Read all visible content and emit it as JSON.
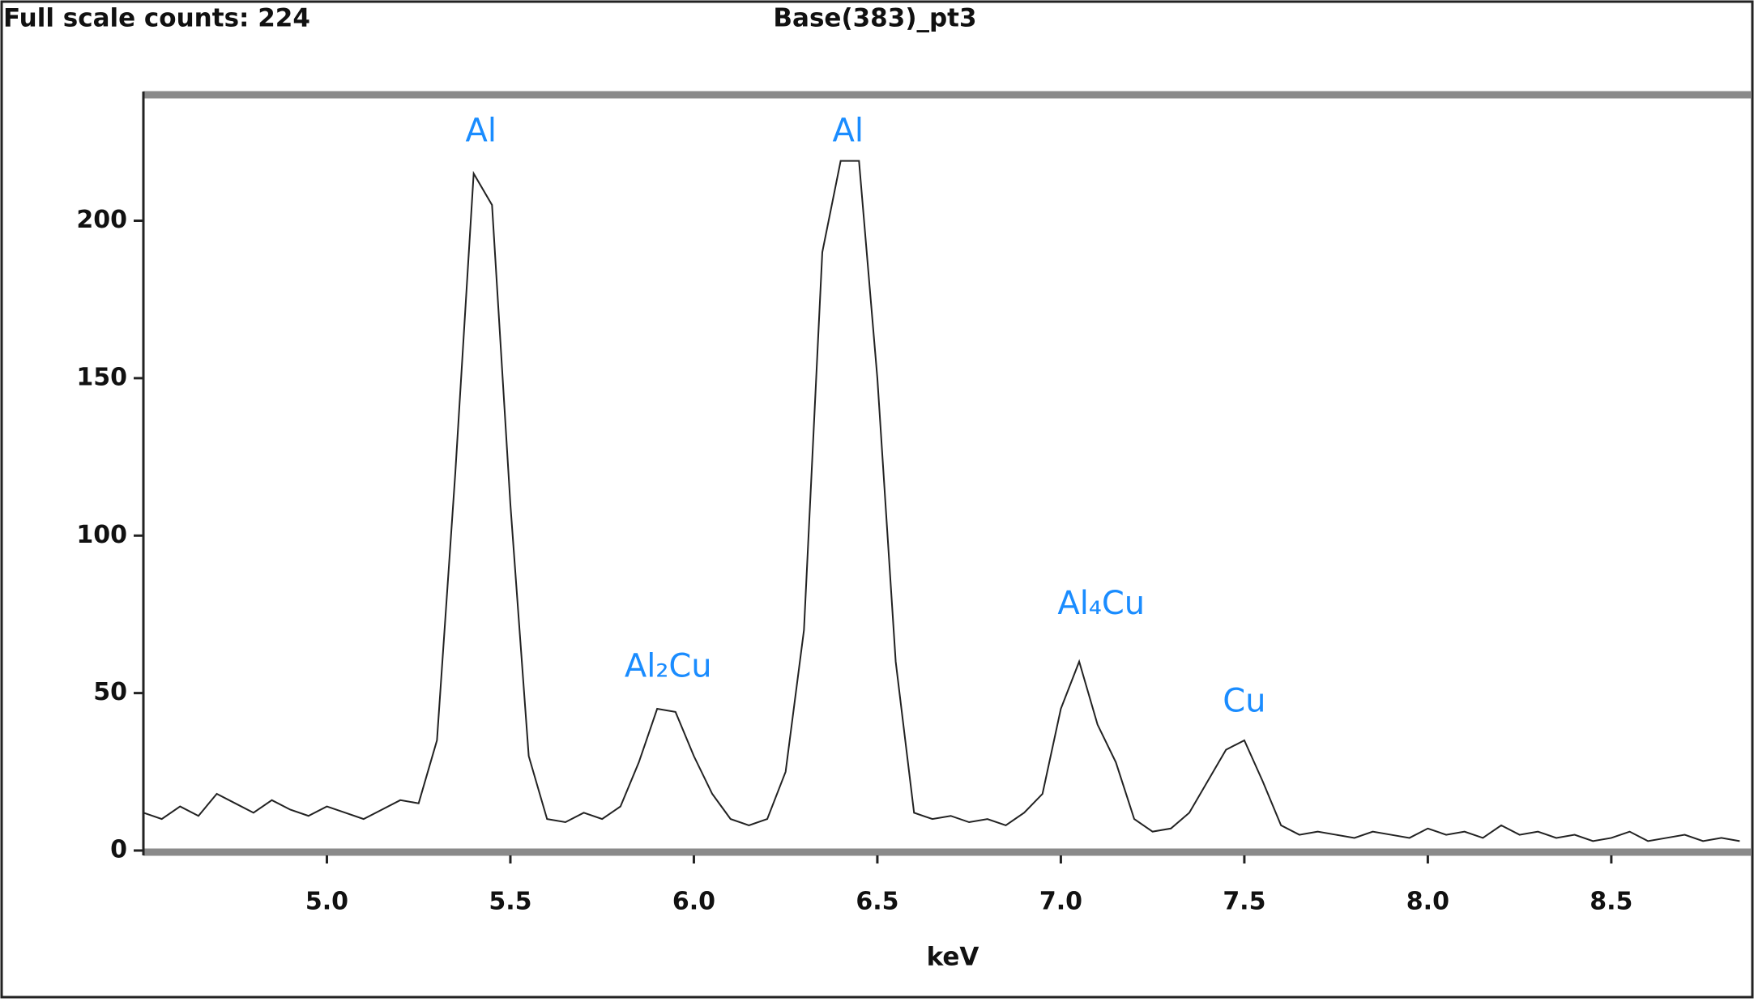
{
  "chart_data": {
    "type": "line",
    "subtitle": "Full scale counts: 224",
    "title": "Base(383)_pt3",
    "x_label": "keV",
    "xlim": [
      4.5,
      8.88
    ],
    "ylim": [
      0,
      240
    ],
    "xticks": [
      {
        "value": 5,
        "label": "5.0"
      },
      5.5,
      {
        "value": 6,
        "label": "6.0"
      },
      6.5,
      {
        "value": 7,
        "label": "7.0"
      },
      7.5,
      {
        "value": 8,
        "label": "8.0"
      },
      8.5
    ],
    "yticks": [
      0,
      50,
      100,
      150,
      200
    ],
    "color": "#222222",
    "annotation_color": "#1a8cff",
    "x": [
      4.5,
      4.55,
      4.6,
      4.65,
      4.7,
      4.75,
      4.8,
      4.85,
      4.9,
      4.95,
      5.0,
      5.05,
      5.1,
      5.15,
      5.2,
      5.25,
      5.3,
      5.35,
      5.4,
      5.45,
      5.5,
      5.55,
      5.6,
      5.65,
      5.7,
      5.75,
      5.8,
      5.85,
      5.9,
      5.95,
      6.0,
      6.05,
      6.1,
      6.15,
      6.2,
      6.25,
      6.3,
      6.35,
      6.4,
      6.45,
      6.5,
      6.55,
      6.6,
      6.65,
      6.7,
      6.75,
      6.8,
      6.85,
      6.9,
      6.95,
      7.0,
      7.05,
      7.1,
      7.15,
      7.2,
      7.25,
      7.3,
      7.35,
      7.4,
      7.45,
      7.5,
      7.55,
      7.6,
      7.65,
      7.7,
      7.75,
      7.8,
      7.85,
      7.9,
      7.95,
      8.0,
      8.05,
      8.1,
      8.15,
      8.2,
      8.25,
      8.3,
      8.35,
      8.4,
      8.45,
      8.5,
      8.55,
      8.6,
      8.65,
      8.7,
      8.75,
      8.8,
      8.85
    ],
    "values": [
      12,
      10,
      14,
      11,
      18,
      15,
      12,
      16,
      13,
      11,
      14,
      12,
      10,
      13,
      16,
      15,
      35,
      120,
      215,
      205,
      110,
      30,
      10,
      9,
      12,
      10,
      14,
      28,
      45,
      44,
      30,
      18,
      10,
      8,
      10,
      25,
      70,
      190,
      219,
      219,
      150,
      60,
      12,
      10,
      11,
      9,
      10,
      8,
      12,
      18,
      45,
      60,
      40,
      28,
      10,
      6,
      7,
      12,
      22,
      32,
      35,
      22,
      8,
      5,
      6,
      5,
      4,
      6,
      5,
      4,
      7,
      5,
      6,
      4,
      8,
      5,
      6,
      4,
      5,
      3,
      4,
      6,
      3,
      4,
      5,
      3,
      4,
      3
    ],
    "annotations": [
      {
        "text": "Al",
        "x": 5.42,
        "y": 228
      },
      {
        "text": "Al₂Cu",
        "x": 5.93,
        "y": 58
      },
      {
        "text": "Al",
        "x": 6.42,
        "y": 228
      },
      {
        "text": "Al₄Cu",
        "x": 7.11,
        "y": 78
      },
      {
        "text": "Cu",
        "x": 7.5,
        "y": 47
      }
    ]
  }
}
